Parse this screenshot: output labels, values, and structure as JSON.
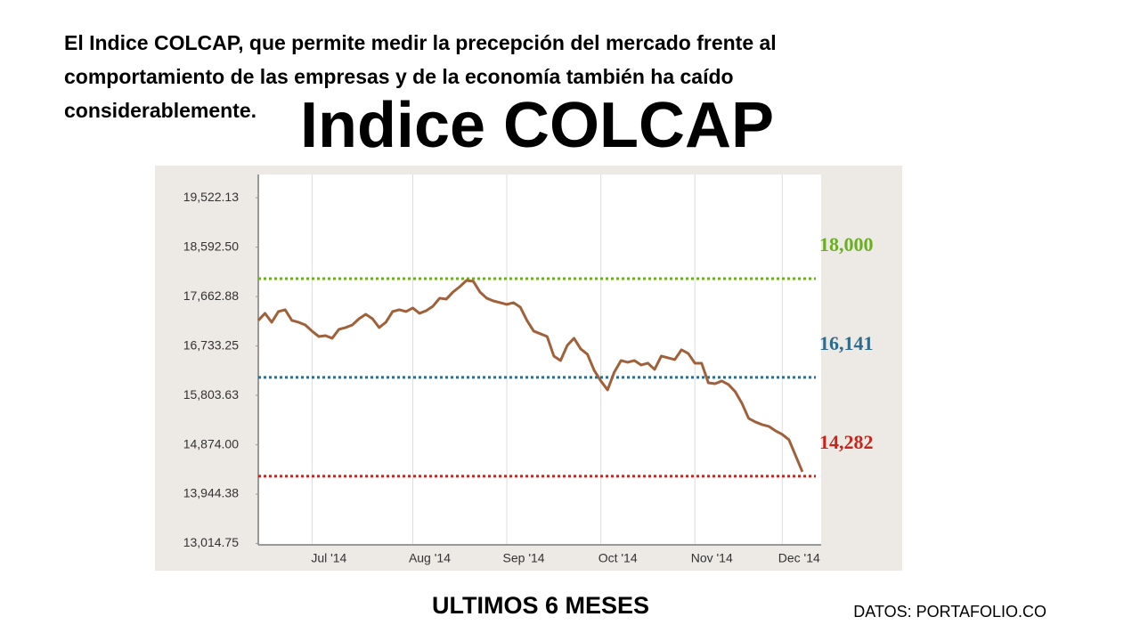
{
  "chart_data": {
    "type": "line",
    "intro_lines": [
      "El Indice COLCAP, que permite medir la precepción del mercado frente al",
      "comportamiento de las empresas y de la economía también ha caído",
      "considerablemente."
    ],
    "title": "Indice COLCAP",
    "x_caption": "ULTIMOS 6 MESES",
    "source": "DATOS: PORTAFOLIO.CO",
    "xlim": [
      0,
      83
    ],
    "xticks": [
      {
        "value": 8,
        "label": "Jul '14"
      },
      {
        "value": 23,
        "label": "Aug '14"
      },
      {
        "value": 37,
        "label": "Sep '14"
      },
      {
        "value": 51,
        "label": "Oct '14"
      },
      {
        "value": 65,
        "label": "Nov '14"
      },
      {
        "value": 78,
        "label": "Dec '14"
      }
    ],
    "ylim": [
      12990,
      19960
    ],
    "yticks": [
      {
        "value": 19522.13,
        "label": "19,522.13"
      },
      {
        "value": 18592.5,
        "label": "18,592.50"
      },
      {
        "value": 17662.88,
        "label": "17,662.88"
      },
      {
        "value": 16733.25,
        "label": "16,733.25"
      },
      {
        "value": 15803.63,
        "label": "15,803.63"
      },
      {
        "value": 14874,
        "label": "14,874.00"
      },
      {
        "value": 13944.38,
        "label": "13,944.38"
      },
      {
        "value": 13014.75,
        "label": "13,014.75"
      }
    ],
    "grid": true,
    "series": [
      {
        "color": "#a0613a",
        "values": [
          17213,
          17347,
          17179,
          17380,
          17414,
          17213,
          17179,
          17129,
          17012,
          16911,
          16928,
          16878,
          17045,
          17079,
          17129,
          17246,
          17330,
          17246,
          17079,
          17179,
          17380,
          17414,
          17380,
          17447,
          17347,
          17397,
          17481,
          17632,
          17615,
          17749,
          17849,
          17966,
          17950,
          17749,
          17632,
          17581,
          17548,
          17514,
          17548,
          17464,
          17213,
          17012,
          16962,
          16911,
          16543,
          16459,
          16744,
          16878,
          16677,
          16576,
          16275,
          16074,
          15906,
          16241,
          16459,
          16426,
          16459,
          16375,
          16409,
          16292,
          16543,
          16509,
          16476,
          16660,
          16593,
          16409,
          16409,
          16040,
          16023,
          16074,
          16007,
          15873,
          15655,
          15370,
          15303,
          15253,
          15220,
          15136,
          15069,
          14968,
          14667,
          14365
        ]
      }
    ],
    "reference_lines": [
      {
        "value": 18000,
        "label": "18,000",
        "color": "#6aae22"
      },
      {
        "value": 16141,
        "label": "16,141",
        "color": "#2e6b8c"
      },
      {
        "value": 14282,
        "label": "14,282",
        "color": "#c4261c"
      }
    ]
  }
}
